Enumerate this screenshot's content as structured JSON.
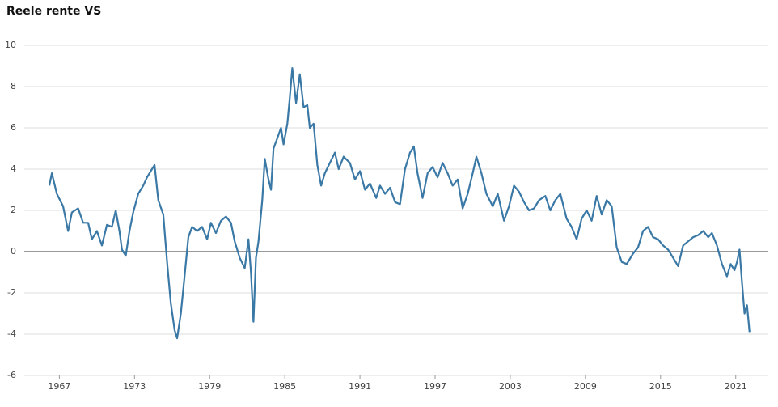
{
  "chart_data": {
    "type": "line",
    "title": "Reele rente VS",
    "series": [
      {
        "name": "Reele rente",
        "color": "#3a78a6",
        "x": [
          1966.2,
          1966.4,
          1966.8,
          1967.3,
          1967.7,
          1968.0,
          1968.5,
          1968.9,
          1969.3,
          1969.6,
          1970.0,
          1970.4,
          1970.8,
          1971.2,
          1971.5,
          1971.8,
          1972.0,
          1972.3,
          1972.6,
          1972.9,
          1973.3,
          1973.7,
          1974.0,
          1974.3,
          1974.6,
          1974.9,
          1975.3,
          1975.6,
          1975.9,
          1976.2,
          1976.4,
          1976.7,
          1977.0,
          1977.3,
          1977.6,
          1978.0,
          1978.4,
          1978.8,
          1979.1,
          1979.5,
          1979.9,
          1980.3,
          1980.7,
          1981.0,
          1981.4,
          1981.8,
          1982.1,
          1982.3,
          1982.5,
          1982.7,
          1982.9,
          1983.2,
          1983.4,
          1983.7,
          1983.9,
          1984.1,
          1984.4,
          1984.7,
          1984.9,
          1985.2,
          1985.4,
          1985.6,
          1985.9,
          1986.2,
          1986.5,
          1986.8,
          1987.0,
          1987.3,
          1987.6,
          1987.9,
          1988.2,
          1988.6,
          1989.0,
          1989.3,
          1989.7,
          1990.2,
          1990.6,
          1991.0,
          1991.4,
          1991.8,
          1992.3,
          1992.6,
          1993.0,
          1993.4,
          1993.8,
          1994.2,
          1994.6,
          1995.0,
          1995.3,
          1995.6,
          1996.0,
          1996.4,
          1996.8,
          1997.2,
          1997.6,
          1998.0,
          1998.4,
          1998.8,
          1999.2,
          1999.6,
          2000.0,
          2000.3,
          2000.7,
          2001.1,
          2001.6,
          2002.0,
          2002.5,
          2002.9,
          2003.3,
          2003.7,
          2004.1,
          2004.5,
          2004.9,
          2005.3,
          2005.8,
          2006.2,
          2006.6,
          2007.0,
          2007.5,
          2007.9,
          2008.3,
          2008.7,
          2009.1,
          2009.5,
          2009.9,
          2010.3,
          2010.7,
          2011.1,
          2011.5,
          2011.9,
          2012.3,
          2012.8,
          2013.2,
          2013.6,
          2014.0,
          2014.4,
          2014.8,
          2015.2,
          2015.6,
          2016.0,
          2016.4,
          2016.8,
          2017.2,
          2017.6,
          2018.0,
          2018.4,
          2018.8,
          2019.1,
          2019.5,
          2019.9,
          2020.3,
          2020.6,
          2020.9,
          2021.1,
          2021.3,
          2021.5,
          2021.7,
          2021.9,
          2022.1
        ],
        "values": [
          3.2,
          3.8,
          2.8,
          2.2,
          1.0,
          1.9,
          2.1,
          1.4,
          1.4,
          0.6,
          1.0,
          0.3,
          1.3,
          1.2,
          2.0,
          1.0,
          0.1,
          -0.2,
          1.0,
          1.9,
          2.8,
          3.2,
          3.6,
          3.9,
          4.2,
          2.5,
          1.8,
          -0.5,
          -2.5,
          -3.8,
          -4.2,
          -3.0,
          -1.2,
          0.7,
          1.2,
          1.0,
          1.2,
          0.6,
          1.4,
          0.9,
          1.5,
          1.7,
          1.4,
          0.5,
          -0.3,
          -0.8,
          0.6,
          -1.0,
          -3.4,
          -0.3,
          0.5,
          2.5,
          4.5,
          3.5,
          3.0,
          5.0,
          5.5,
          6.0,
          5.2,
          6.2,
          7.5,
          8.9,
          7.2,
          8.6,
          7.0,
          7.1,
          6.0,
          6.2,
          4.2,
          3.2,
          3.8,
          4.3,
          4.8,
          4.0,
          4.6,
          4.3,
          3.5,
          3.9,
          3.0,
          3.3,
          2.6,
          3.2,
          2.8,
          3.1,
          2.4,
          2.3,
          4.0,
          4.8,
          5.1,
          3.8,
          2.6,
          3.8,
          4.1,
          3.6,
          4.3,
          3.8,
          3.2,
          3.5,
          2.1,
          2.8,
          3.8,
          4.6,
          3.8,
          2.8,
          2.2,
          2.8,
          1.5,
          2.2,
          3.2,
          2.9,
          2.4,
          2.0,
          2.1,
          2.5,
          2.7,
          2.0,
          2.5,
          2.8,
          1.6,
          1.2,
          0.6,
          1.6,
          2.0,
          1.5,
          2.7,
          1.8,
          2.5,
          2.2,
          0.2,
          -0.5,
          -0.6,
          -0.1,
          0.2,
          1.0,
          1.2,
          0.7,
          0.6,
          0.3,
          0.1,
          -0.3,
          -0.7,
          0.3,
          0.5,
          0.7,
          0.8,
          1.0,
          0.7,
          0.9,
          0.3,
          -0.6,
          -1.2,
          -0.6,
          -0.9,
          -0.5,
          0.1,
          -1.5,
          -3.0,
          -2.6,
          -3.9
        ]
      }
    ],
    "xlim": [
      1964.2,
      2023.6
    ],
    "xticks": [
      1967,
      1973,
      1979,
      1985,
      1991,
      1997,
      2003,
      2009,
      2015,
      2021
    ],
    "ylim": [
      -6,
      10
    ],
    "yticks": [
      -6,
      -4,
      -2,
      0,
      2,
      4,
      6,
      8,
      10
    ],
    "grid": true
  }
}
